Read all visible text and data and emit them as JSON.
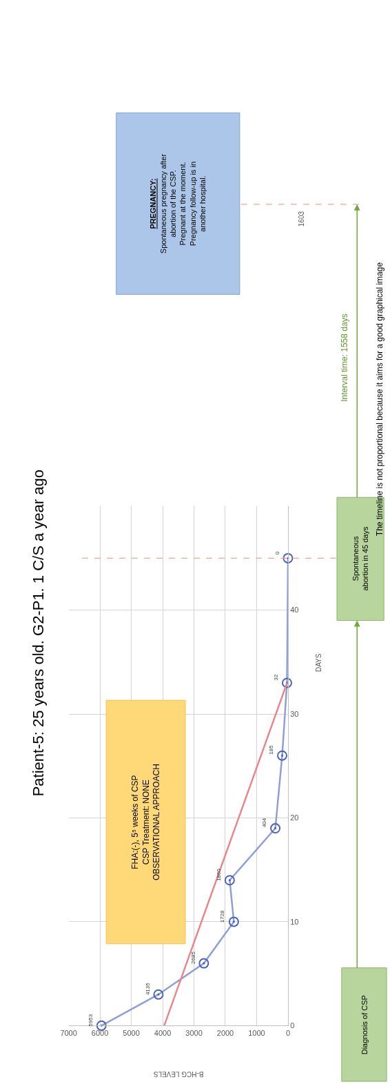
{
  "chart_data": [
    {
      "type": "line",
      "title": "Patient-5: 25 years old. G2-P1. 1 C/S a year ago",
      "xlabel": "B-HCG LEVELS",
      "ylabel": "DAYS",
      "series": [
        {
          "color": "#8e9fd8",
          "x": [
            5953,
            4135,
            2685,
            1728,
            1860,
            404,
            185,
            32,
            0
          ],
          "values": [
            0,
            3,
            6,
            10,
            14,
            19,
            26,
            33,
            45
          ]
        },
        {
          "type": "line",
          "color": "#e8868e",
          "x": [
            3950,
            30
          ],
          "values": [
            0,
            33
          ],
          "marker": "none"
        }
      ],
      "marker": "circle",
      "xlim": [
        7000,
        0
      ],
      "xticks": [
        0,
        1000,
        2000,
        3000,
        4000,
        5000,
        6000,
        7000
      ],
      "ylim": [
        0,
        50
      ],
      "yticks": [
        0,
        10,
        20,
        30,
        40
      ],
      "grid": true,
      "ref_lines": [
        {
          "axis": "y",
          "value": 45,
          "color": "#f4a0a0",
          "line_style": "dashed"
        }
      ],
      "annotations": [
        "FHA:(-), 5⁵ weeks of CSP\nCSP Treatment: NONE\nOBSERVATIONAL APPROACH",
        "Diagnosis of CSP",
        "Spontaneous\nabortion in 45 days",
        {
          "text": "5953",
          "x": 5953,
          "y": 0
        },
        {
          "text": "4135",
          "x": 4135,
          "y": 3
        },
        {
          "text": "2685",
          "x": 2685,
          "y": 6
        },
        {
          "text": "1728",
          "x": 1728,
          "y": 10
        },
        {
          "text": "1860",
          "x": 1860,
          "y": 14
        },
        {
          "text": "404",
          "x": 404,
          "y": 19
        },
        {
          "text": "185",
          "x": 185,
          "y": 26
        },
        {
          "text": "32",
          "x": 32,
          "y": 33
        },
        {
          "text": "0",
          "x": 0,
          "y": 45
        }
      ]
    },
    {
      "type": "other",
      "annotations": [
        "PREGNANCY:\nSpontaneous pregnancy after\nabortion of the CSP.\nPregnant at the moment.\nPregnancy follow-up is in\nanother hospital.",
        "Interval time: 1558 days",
        "The timeline is not proportional because it aims for a good graphical image",
        "1603"
      ]
    }
  ]
}
